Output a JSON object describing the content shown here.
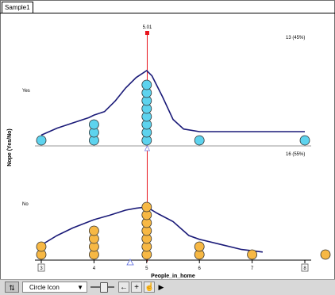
{
  "window": {
    "tab_label": "Sample1"
  },
  "chart_data": {
    "type": "dot-plot",
    "xlabel": "People_in_home",
    "ylabel": "Nope (Yes/No)",
    "x_tick_labels": [
      "3",
      "4",
      "5",
      "6",
      "7",
      "8"
    ],
    "xlim": [
      3,
      8
    ],
    "movable_line_value_label": "5.01",
    "movable_line_value": 5.01,
    "groups": [
      {
        "label": "Yes",
        "color": "#5dd3ee",
        "upper_count_label": "13 (45%)",
        "lower_count_label": "16 (55%)",
        "points": [
          {
            "x": 3.0,
            "n": 1
          },
          {
            "x": 4.0,
            "n": 3
          },
          {
            "x": 5.0,
            "n": 8
          },
          {
            "x": 6.0,
            "n": 1
          },
          {
            "x": 8.0,
            "n": 1
          }
        ],
        "density_curve": [
          [
            3.0,
            0.06
          ],
          [
            3.3,
            0.14
          ],
          [
            3.6,
            0.2
          ],
          [
            3.9,
            0.26
          ],
          [
            4.0,
            0.29
          ],
          [
            4.2,
            0.33
          ],
          [
            4.4,
            0.45
          ],
          [
            4.6,
            0.6
          ],
          [
            4.8,
            0.72
          ],
          [
            5.0,
            0.8
          ],
          [
            5.1,
            0.74
          ],
          [
            5.3,
            0.5
          ],
          [
            5.5,
            0.24
          ],
          [
            5.7,
            0.13
          ],
          [
            6.0,
            0.1
          ],
          [
            6.5,
            0.1
          ],
          [
            7.0,
            0.1
          ],
          [
            7.5,
            0.1
          ],
          [
            8.0,
            0.1
          ]
        ]
      },
      {
        "label": "No",
        "color": "#f7b844",
        "points": [
          {
            "x": 3.0,
            "n": 2
          },
          {
            "x": 4.0,
            "n": 4
          },
          {
            "x": 5.0,
            "n": 7
          },
          {
            "x": 6.0,
            "n": 2
          },
          {
            "x": 7.0,
            "n": 1
          }
        ],
        "density_curve": [
          [
            3.0,
            0.15
          ],
          [
            3.3,
            0.3
          ],
          [
            3.6,
            0.42
          ],
          [
            4.0,
            0.55
          ],
          [
            4.3,
            0.62
          ],
          [
            4.6,
            0.7
          ],
          [
            4.8,
            0.73
          ],
          [
            5.0,
            0.75
          ],
          [
            5.2,
            0.65
          ],
          [
            5.5,
            0.52
          ],
          [
            5.8,
            0.3
          ],
          [
            6.0,
            0.24
          ],
          [
            6.4,
            0.16
          ],
          [
            6.8,
            0.08
          ],
          [
            7.2,
            0.04
          ]
        ]
      }
    ],
    "legend": "none",
    "grid": false
  },
  "toolbar": {
    "icon_select_value": "Circle Icon",
    "back_arrow": "←",
    "plus_arrow": "+",
    "hand_glyph": "☝",
    "play_glyph": "▶",
    "tool_glyph": "⇅"
  },
  "colors": {
    "movable_line": "#e8141c",
    "curve": "#1a1a78",
    "yes_dot": "#5dd3ee",
    "no_dot": "#f7b844"
  }
}
